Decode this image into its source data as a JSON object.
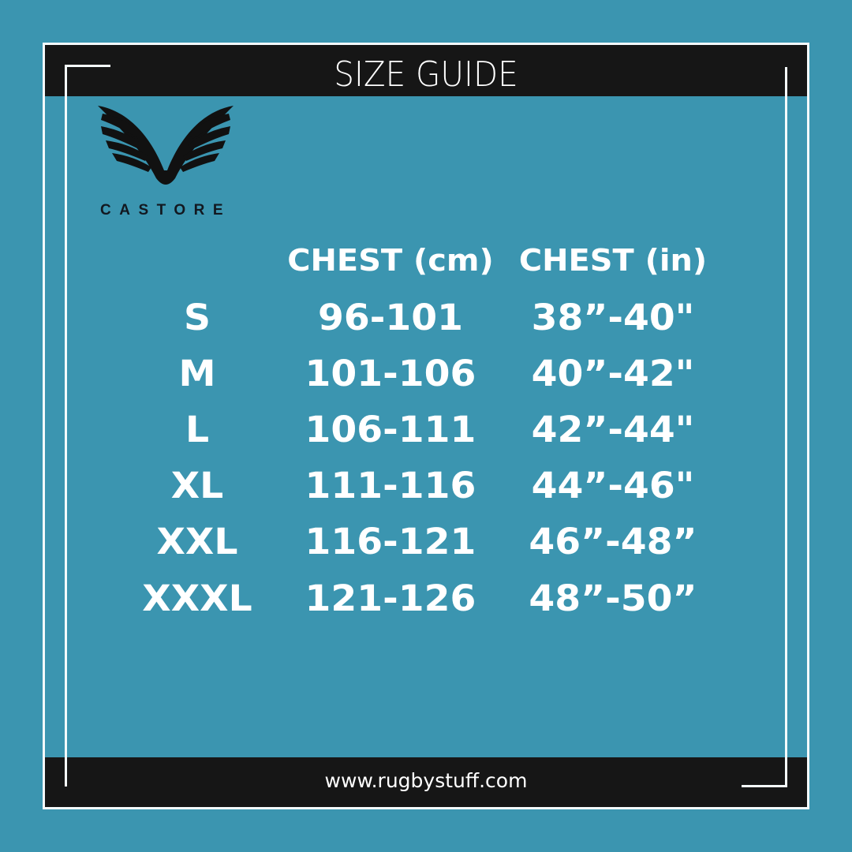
{
  "header": {
    "title": "SIZE GUIDE"
  },
  "brand": {
    "name": "CASTORE"
  },
  "table": {
    "columns": [
      "",
      "CHEST (cm)",
      "CHEST (in)"
    ],
    "rows": [
      {
        "size": "S",
        "cm": "96-101",
        "in": "38”-40\""
      },
      {
        "size": "M",
        "cm": "101-106",
        "in": "40”-42\""
      },
      {
        "size": "L",
        "cm": "106-111",
        "in": "42”-44\""
      },
      {
        "size": "XL",
        "cm": "111-116",
        "in": "44”-46\""
      },
      {
        "size": "XXL",
        "cm": "116-121",
        "in": "46”-48”"
      },
      {
        "size": "XXXL",
        "cm": "121-126",
        "in": "48”-50”"
      }
    ]
  },
  "footer": {
    "url": "www.rugbystuff.com"
  },
  "colors": {
    "background": "#3b95b0",
    "band": "#161616",
    "text": "#ffffff"
  }
}
